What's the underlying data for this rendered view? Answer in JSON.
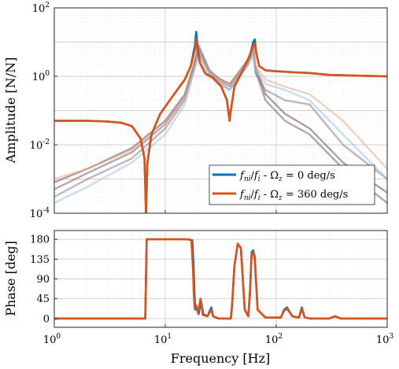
{
  "chart_data": [
    {
      "type": "line",
      "ylabel": "Amplitude [N/N]",
      "xscale": "log",
      "yscale": "log",
      "xlim": [
        1,
        1000
      ],
      "ylim": [
        0.0001,
        100
      ],
      "xticks": [
        1,
        10,
        100,
        1000
      ],
      "yticks": [
        {
          "base": "10",
          "exp": "-4",
          "value": 0.0001
        },
        {
          "base": "10",
          "exp": "-2",
          "value": 0.01
        },
        {
          "base": "10",
          "exp": "0",
          "value": 1
        },
        {
          "base": "10",
          "exp": "2",
          "value": 100
        }
      ],
      "grid": true,
      "legend_position": "bottom-right",
      "legend": [
        {
          "sub_lhs": "ni",
          "sub_rhs": "i",
          "rhs": "0 deg/s",
          "color": "#0072BD"
        },
        {
          "sub_lhs": "ni",
          "sub_rhs": "i",
          "rhs": "360 deg/s",
          "color": "#D95319"
        }
      ],
      "series": [
        {
          "color": "#0072BD",
          "x": [
            1,
            2,
            3,
            4,
            5,
            6,
            6.5,
            6.7,
            6.9,
            7.5,
            9,
            12,
            15,
            17,
            18.5,
            19,
            19.5,
            20.5,
            23,
            27,
            32,
            36,
            38,
            39,
            42,
            50,
            58,
            62,
            64,
            66,
            70,
            80,
            100,
            150,
            200,
            300,
            500,
            1000
          ],
          "y": [
            0.05,
            0.05,
            0.048,
            0.044,
            0.035,
            0.015,
            0.004,
            0.0001,
            0.003,
            0.02,
            0.08,
            0.3,
            0.8,
            2,
            8,
            20,
            8,
            2.5,
            1.2,
            0.9,
            0.5,
            0.2,
            0.05,
            0.1,
            0.5,
            1.5,
            4,
            10,
            12,
            5,
            2,
            1.5,
            1.4,
            1.3,
            1.25,
            1.1,
            1.05,
            1
          ]
        },
        {
          "color": "#D95319",
          "x": [
            1,
            2,
            3,
            4,
            5,
            6,
            6.5,
            6.7,
            6.9,
            7.5,
            9,
            12,
            15,
            17,
            18.5,
            19,
            19.5,
            20.5,
            23,
            27,
            32,
            36,
            38,
            39,
            42,
            50,
            58,
            62,
            64,
            66,
            70,
            80,
            100,
            150,
            200,
            300,
            500,
            1000
          ],
          "y": [
            0.05,
            0.05,
            0.048,
            0.044,
            0.035,
            0.015,
            0.004,
            0.0001,
            0.003,
            0.02,
            0.08,
            0.3,
            0.8,
            2,
            6,
            12,
            6,
            2.5,
            1.2,
            0.9,
            0.5,
            0.2,
            0.05,
            0.1,
            0.5,
            1.5,
            4,
            8,
            9,
            5,
            2,
            1.5,
            1.4,
            1.3,
            1.25,
            1.1,
            1.05,
            1
          ]
        },
        {
          "color": "#6E4F52",
          "x": [
            1,
            2,
            5,
            10,
            15,
            18,
            20,
            25,
            30,
            38,
            45,
            55,
            62,
            65,
            80,
            120,
            200,
            400,
            1000
          ],
          "y": [
            0.0008,
            0.002,
            0.008,
            0.05,
            0.3,
            2,
            8,
            1.5,
            0.9,
            0.6,
            1.2,
            3,
            8,
            2,
            0.3,
            0.08,
            0.03,
            0.003,
            0.0004
          ]
        },
        {
          "color": "#7A5E66",
          "x": [
            1,
            2,
            5,
            10,
            15,
            18,
            20,
            25,
            30,
            38,
            45,
            55,
            62,
            65,
            80,
            120,
            200,
            400,
            1000
          ],
          "y": [
            0.0005,
            0.0015,
            0.006,
            0.04,
            0.25,
            1.8,
            6,
            1.3,
            0.8,
            0.5,
            1,
            2.5,
            6,
            1.5,
            0.2,
            0.05,
            0.02,
            0.002,
            0.0002
          ]
        },
        {
          "color": "#8D7A86",
          "x": [
            1,
            2,
            5,
            10,
            15,
            18,
            20,
            25,
            30,
            38,
            45,
            55,
            62,
            65,
            80,
            120,
            200,
            400,
            1000
          ],
          "y": [
            0.0003,
            0.001,
            0.004,
            0.03,
            0.2,
            1.5,
            5,
            1.2,
            0.7,
            0.4,
            0.9,
            2,
            5,
            1.2,
            0.4,
            0.2,
            0.15,
            0.01,
            0.001
          ]
        },
        {
          "color": "#E9A98A",
          "x": [
            1,
            2,
            5,
            10,
            15,
            18,
            20,
            25,
            30,
            38,
            45,
            55,
            62,
            65,
            80,
            120,
            200,
            400,
            1000
          ],
          "y": [
            0.001,
            0.002,
            0.007,
            0.04,
            0.25,
            1.5,
            5,
            1.3,
            0.8,
            0.5,
            1,
            2.5,
            6,
            2,
            0.8,
            0.5,
            0.3,
            0.05,
            0.002
          ]
        },
        {
          "color": "#9CC3E2",
          "x": [
            1,
            2,
            5,
            10,
            15,
            18,
            20,
            25,
            30,
            38,
            45,
            55,
            62,
            65,
            80,
            120,
            200,
            400,
            1000
          ],
          "y": [
            0.0002,
            0.0006,
            0.003,
            0.02,
            0.15,
            1.2,
            4,
            1,
            0.6,
            0.4,
            0.8,
            2,
            4,
            1.5,
            0.6,
            0.4,
            0.2,
            0.02,
            0.001
          ]
        }
      ]
    },
    {
      "type": "line",
      "xlabel": "Frequency [Hz]",
      "ylabel": "Phase [deg]",
      "xscale": "log",
      "xlim": [
        1,
        1000
      ],
      "ylim": [
        -20,
        200
      ],
      "xticks": [
        1,
        10,
        100,
        1000
      ],
      "yticks": [
        0,
        45,
        90,
        135,
        180
      ],
      "grid": true,
      "series": [
        {
          "color": "#0072BD",
          "x": [
            1,
            6.6,
            6.8,
            16,
            17.5,
            18,
            18.3,
            18.6,
            19,
            20,
            21,
            22,
            24,
            26,
            27,
            30,
            35,
            39,
            40,
            42,
            45,
            48,
            52,
            56,
            58,
            60,
            62,
            64,
            68,
            80,
            110,
            118,
            125,
            140,
            160,
            170,
            180,
            200,
            300,
            340,
            380,
            500,
            1000
          ],
          "y": [
            0,
            0,
            180,
            180,
            178,
            120,
            60,
            20,
            30,
            10,
            40,
            10,
            5,
            25,
            5,
            0,
            0,
            0,
            30,
            120,
            170,
            160,
            20,
            5,
            60,
            150,
            155,
            140,
            20,
            2,
            2,
            20,
            25,
            5,
            2,
            25,
            3,
            0,
            0,
            5,
            0,
            0,
            0
          ]
        },
        {
          "color": "#D95319",
          "x": [
            1,
            6.6,
            6.8,
            16,
            17.2,
            17.8,
            18.1,
            18.4,
            18.8,
            19.8,
            20.8,
            21.8,
            24,
            26,
            27,
            30,
            35,
            39,
            40,
            42,
            45,
            48,
            52,
            56,
            58,
            60,
            62,
            64,
            68,
            80,
            110,
            118,
            125,
            140,
            160,
            170,
            180,
            200,
            300,
            340,
            380,
            500,
            1000
          ],
          "y": [
            0,
            0,
            180,
            180,
            178,
            110,
            55,
            25,
            30,
            12,
            45,
            8,
            5,
            20,
            5,
            0,
            0,
            0,
            30,
            120,
            170,
            160,
            20,
            5,
            55,
            145,
            150,
            135,
            20,
            2,
            2,
            18,
            22,
            5,
            2,
            22,
            3,
            0,
            0,
            5,
            0,
            0,
            0
          ]
        }
      ]
    }
  ]
}
